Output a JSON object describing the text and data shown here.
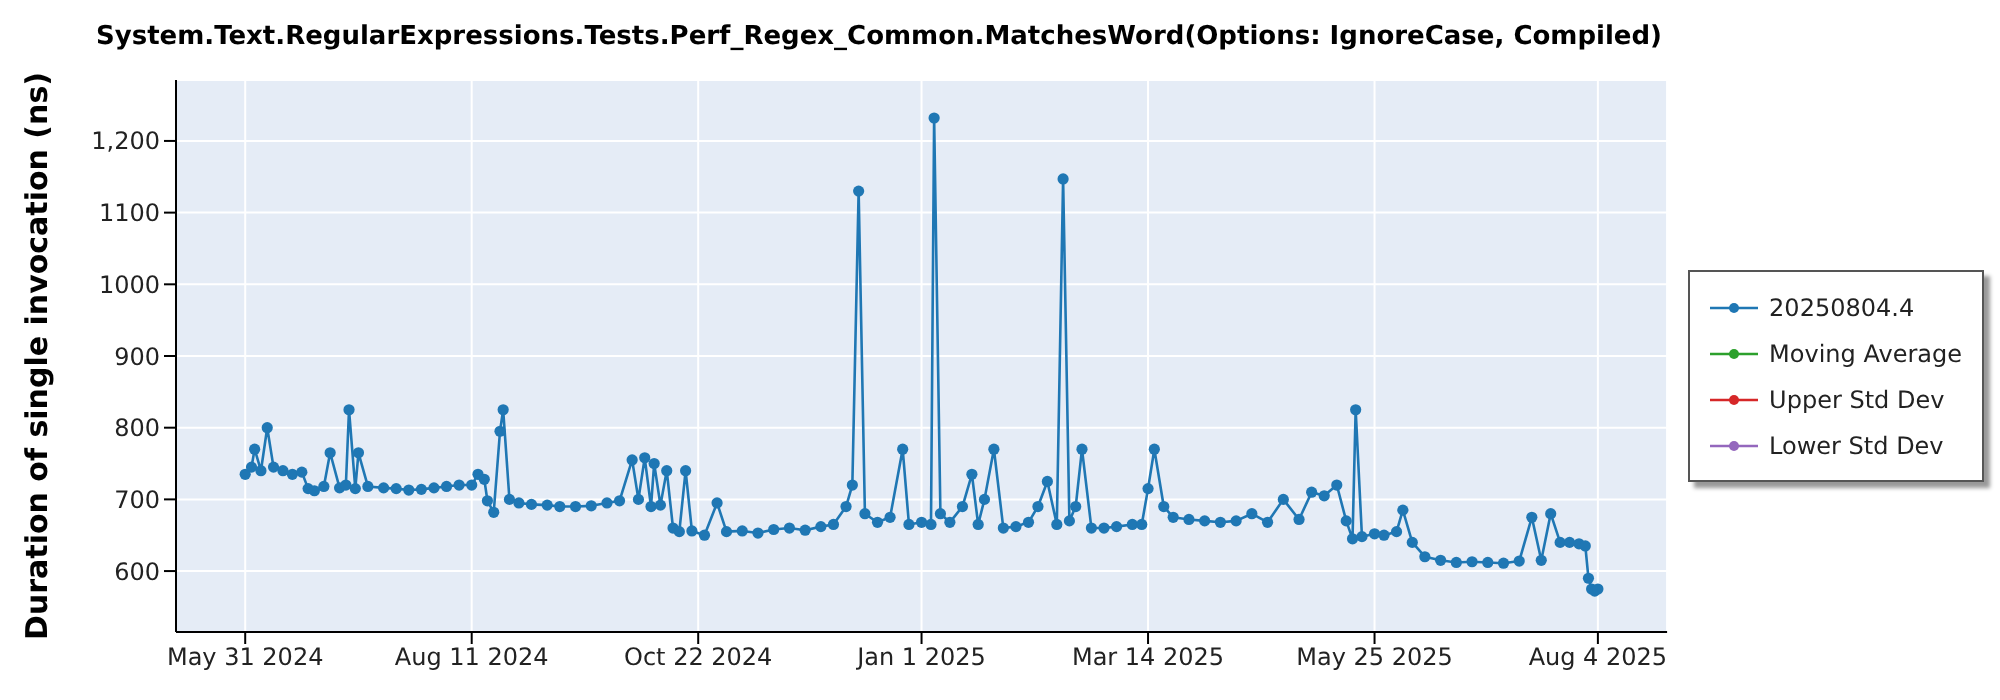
{
  "chart_data": {
    "type": "line",
    "title": "System.Text.RegularExpressions.Tests.Perf_Regex_Common.MatchesWord(Options: IgnoreCase, Compiled)",
    "ylabel": "Duration of single invocation (ns)",
    "xlim": [
      "2024-05-09",
      "2025-08-26"
    ],
    "xticks": [
      {
        "value": "2024-05-31",
        "label": "May 31 2024"
      },
      {
        "value": "2024-08-11",
        "label": "Aug 11 2024"
      },
      {
        "value": "2024-10-22",
        "label": "Oct 22 2024"
      },
      {
        "value": "2025-01-01",
        "label": "Jan 1 2025"
      },
      {
        "value": "2025-03-14",
        "label": "Mar 14 2025"
      },
      {
        "value": "2025-05-25",
        "label": "May 25 2025"
      },
      {
        "value": "2025-08-04",
        "label": "Aug 4 2025"
      }
    ],
    "ylim": [
      515,
      1285
    ],
    "yticks": [
      600,
      700,
      800,
      900,
      1000,
      1100,
      {
        "value": 1200,
        "label": "1,200"
      }
    ],
    "grid": true,
    "legend": "right",
    "marker": "circle",
    "line_style": "solid",
    "series": [
      {
        "name": "20250804.4",
        "color": "#1f77b4",
        "x": [
          "2024-05-31",
          "2024-06-02",
          "2024-06-03",
          "2024-06-05",
          "2024-06-07",
          "2024-06-09",
          "2024-06-12",
          "2024-06-15",
          "2024-06-18",
          "2024-06-20",
          "2024-06-22",
          "2024-06-25",
          "2024-06-27",
          "2024-06-30",
          "2024-07-02",
          "2024-07-03",
          "2024-07-05",
          "2024-07-06",
          "2024-07-09",
          "2024-07-14",
          "2024-07-18",
          "2024-07-22",
          "2024-07-26",
          "2024-07-30",
          "2024-08-03",
          "2024-08-07",
          "2024-08-11",
          "2024-08-13",
          "2024-08-15",
          "2024-08-16",
          "2024-08-18",
          "2024-08-20",
          "2024-08-21",
          "2024-08-23",
          "2024-08-26",
          "2024-08-30",
          "2024-09-04",
          "2024-09-08",
          "2024-09-13",
          "2024-09-18",
          "2024-09-23",
          "2024-09-27",
          "2024-10-01",
          "2024-10-03",
          "2024-10-05",
          "2024-10-07",
          "2024-10-08",
          "2024-10-10",
          "2024-10-12",
          "2024-10-14",
          "2024-10-16",
          "2024-10-18",
          "2024-10-20",
          "2024-10-24",
          "2024-10-28",
          "2024-10-31",
          "2024-11-05",
          "2024-11-10",
          "2024-11-15",
          "2024-11-20",
          "2024-11-25",
          "2024-11-30",
          "2024-12-04",
          "2024-12-08",
          "2024-12-10",
          "2024-12-12",
          "2024-12-14",
          "2024-12-18",
          "2024-12-22",
          "2024-12-26",
          "2024-12-28",
          "2025-01-01",
          "2025-01-04",
          "2025-01-05",
          "2025-01-07",
          "2025-01-10",
          "2025-01-14",
          "2025-01-17",
          "2025-01-19",
          "2025-01-21",
          "2025-01-24",
          "2025-01-27",
          "2025-01-31",
          "2025-02-04",
          "2025-02-07",
          "2025-02-10",
          "2025-02-13",
          "2025-02-15",
          "2025-02-17",
          "2025-02-19",
          "2025-02-21",
          "2025-02-24",
          "2025-02-28",
          "2025-03-04",
          "2025-03-09",
          "2025-03-12",
          "2025-03-14",
          "2025-03-16",
          "2025-03-19",
          "2025-03-22",
          "2025-03-27",
          "2025-04-01",
          "2025-04-06",
          "2025-04-11",
          "2025-04-16",
          "2025-04-21",
          "2025-04-26",
          "2025-05-01",
          "2025-05-05",
          "2025-05-09",
          "2025-05-13",
          "2025-05-16",
          "2025-05-18",
          "2025-05-19",
          "2025-05-21",
          "2025-05-25",
          "2025-05-28",
          "2025-06-01",
          "2025-06-03",
          "2025-06-06",
          "2025-06-10",
          "2025-06-15",
          "2025-06-20",
          "2025-06-25",
          "2025-06-30",
          "2025-07-05",
          "2025-07-10",
          "2025-07-14",
          "2025-07-17",
          "2025-07-20",
          "2025-07-23",
          "2025-07-26",
          "2025-07-29",
          "2025-07-31",
          "2025-08-01",
          "2025-08-02",
          "2025-08-03",
          "2025-08-04"
        ],
        "values": [
          735,
          745,
          770,
          740,
          800,
          745,
          740,
          735,
          738,
          715,
          712,
          718,
          765,
          716,
          720,
          825,
          715,
          765,
          718,
          716,
          715,
          713,
          714,
          716,
          718,
          720,
          720,
          735,
          728,
          698,
          682,
          795,
          825,
          700,
          695,
          693,
          692,
          690,
          690,
          691,
          695,
          698,
          755,
          700,
          758,
          690,
          750,
          692,
          740,
          660,
          655,
          740,
          656,
          650,
          695,
          655,
          656,
          653,
          658,
          660,
          657,
          662,
          665,
          690,
          720,
          1130,
          680,
          668,
          675,
          770,
          665,
          668,
          665,
          1232,
          680,
          668,
          690,
          735,
          665,
          700,
          770,
          660,
          662,
          668,
          690,
          725,
          665,
          1147,
          670,
          690,
          770,
          660,
          660,
          662,
          665,
          665,
          715,
          770,
          690,
          675,
          672,
          670,
          668,
          670,
          680,
          668,
          700,
          672,
          710,
          705,
          720,
          670,
          645,
          825,
          648,
          652,
          650,
          655,
          685,
          640,
          620,
          615,
          612,
          613,
          612,
          611,
          614,
          675,
          615,
          680,
          640,
          640,
          638,
          635,
          590,
          575,
          572,
          575
        ]
      },
      {
        "name": "Moving Average",
        "color": "#2ca02c"
      },
      {
        "name": "Upper Std Dev",
        "color": "#d62728"
      },
      {
        "name": "Lower Std Dev",
        "color": "#9467bd"
      }
    ]
  }
}
